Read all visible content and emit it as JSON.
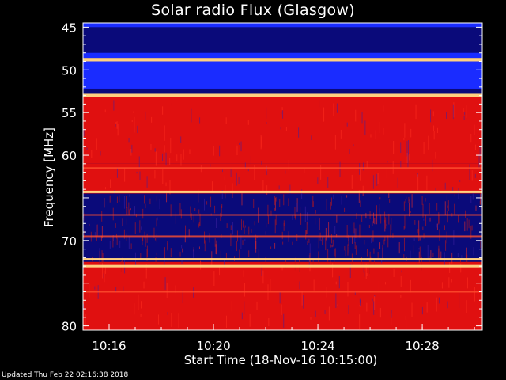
{
  "updated_text": "Updated Thu Feb 22 02:16:38 2018",
  "chart_data": {
    "type": "heatmap",
    "title": "Solar radio Flux (Glasgow)",
    "xlabel": "Start Time (18-Nov-16 10:15:00)",
    "ylabel": "Frequency [MHz]",
    "ylim": [
      44.5,
      80.5
    ],
    "y_ticks": [
      45,
      50,
      55,
      60,
      65,
      70,
      75,
      80
    ],
    "y_tick_labels": [
      "45",
      "50",
      "55",
      "60",
      "",
      "70",
      "",
      "80"
    ],
    "xlim_minutes": [
      0,
      15.3
    ],
    "x_ticks_minutes": [
      1,
      5,
      9,
      13
    ],
    "x_tick_labels": [
      "10:16",
      "10:20",
      "10:24",
      "10:28"
    ],
    "colors": {
      "low": "#0a0a7a",
      "mid": "#1a2cff",
      "high": "#e01010",
      "peak": "#ffd080"
    },
    "bands": [
      {
        "from": 44.5,
        "to": 45.0,
        "level": "mid"
      },
      {
        "from": 45.0,
        "to": 48.0,
        "level": "low"
      },
      {
        "from": 48.0,
        "to": 48.6,
        "level": "mid"
      },
      {
        "from": 48.6,
        "to": 49.0,
        "level": "peak"
      },
      {
        "from": 49.0,
        "to": 52.2,
        "level": "mid"
      },
      {
        "from": 52.2,
        "to": 52.8,
        "level": "low"
      },
      {
        "from": 52.8,
        "to": 53.2,
        "level": "peak"
      },
      {
        "from": 53.2,
        "to": 61.0,
        "level": "high"
      },
      {
        "from": 61.0,
        "to": 64.5,
        "level": "high"
      },
      {
        "from": 64.5,
        "to": 72.5,
        "level": "low"
      },
      {
        "from": 72.5,
        "to": 74.5,
        "level": "high"
      },
      {
        "from": 74.5,
        "to": 80.5,
        "level": "high"
      }
    ],
    "bright_lines": [
      48.8,
      53.0,
      64.3,
      72.2,
      73.0
    ],
    "medium_lines": [
      61.5,
      67.0,
      69.5,
      76.0
    ]
  }
}
